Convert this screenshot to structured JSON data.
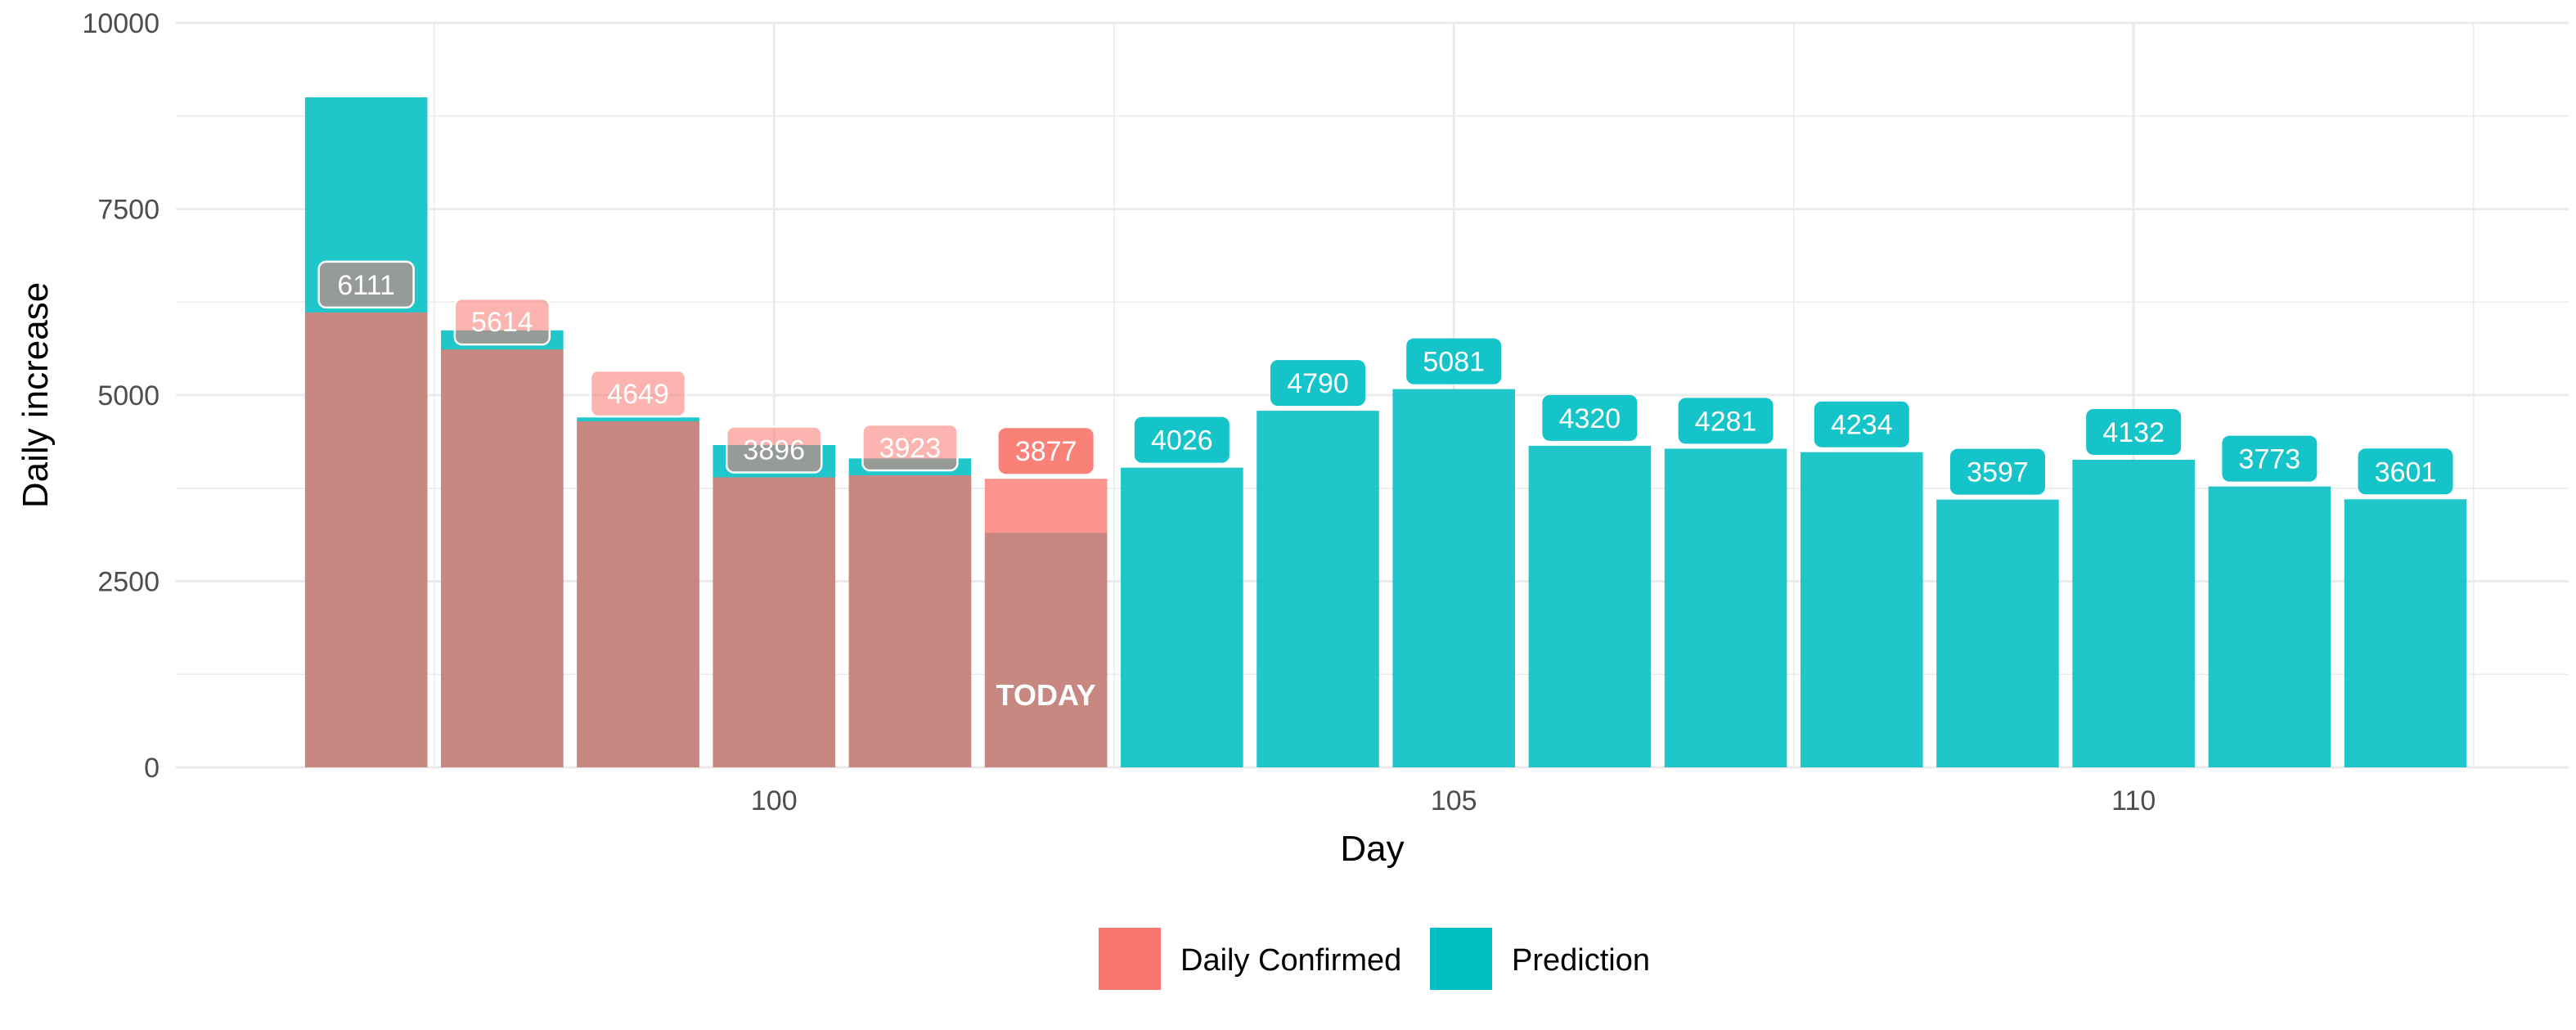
{
  "chart_data": {
    "type": "bar",
    "xlabel": "Day",
    "ylabel": "Daily increase",
    "ylim": [
      0,
      10000
    ],
    "xlim": [
      95.6,
      113.2
    ],
    "x_ticks": [
      100,
      105,
      110
    ],
    "y_ticks": [
      0,
      2500,
      5000,
      7500,
      10000
    ],
    "grid": true,
    "legend_position": "bottom",
    "today_label": "TODAY",
    "today_day": 102,
    "colors": {
      "Daily Confirmed": "#F8766D",
      "Prediction": "#00BFC4"
    },
    "series": [
      {
        "name": "Prediction",
        "x": [
          97,
          98,
          99,
          100,
          101,
          102,
          103,
          104,
          105,
          106,
          107,
          108,
          109,
          110,
          111,
          112
        ],
        "values": [
          9000,
          5870,
          4700,
          4330,
          4150,
          3150,
          4026,
          4790,
          5081,
          4320,
          4281,
          4234,
          3597,
          4132,
          3773,
          3601
        ],
        "labels": [
          null,
          null,
          null,
          null,
          null,
          null,
          "4026",
          "4790",
          "5081",
          "4320",
          "4281",
          "4234",
          "3597",
          "4132",
          "3773",
          "3601"
        ]
      },
      {
        "name": "Daily Confirmed",
        "x": [
          97,
          98,
          99,
          100,
          101,
          102
        ],
        "values": [
          6111,
          5614,
          4649,
          3896,
          3923,
          3877
        ],
        "labels": [
          "6111",
          "5614",
          "4649",
          "3896",
          "3923",
          "3877"
        ]
      }
    ]
  }
}
